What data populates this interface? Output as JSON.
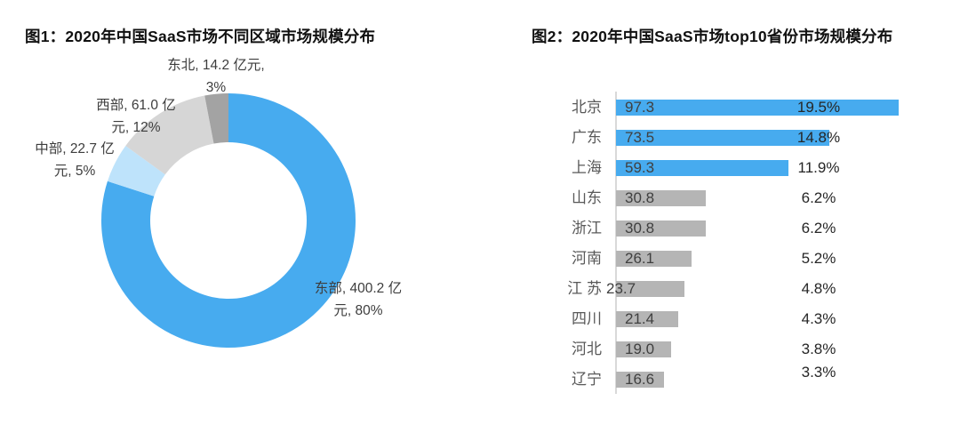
{
  "figure1": {
    "title": "图1：2020年中国SaaS市场不同区域市场规模分布"
  },
  "figure2": {
    "title": "图2：2020年中国SaaS市场top10省份市场规模分布"
  },
  "colors": {
    "accent_blue": "#47ABEF",
    "pale_blue": "#BEE3FB",
    "light_gray": "#D6D6D6",
    "medium_gray": "#A3A3A3",
    "bar_gray": "#B5B5B5",
    "axis_gray": "#D9D9D9"
  },
  "chart_data": [
    {
      "type": "pie",
      "subtype": "donut",
      "title": "图1：2020年中国SaaS市场不同区域市场规模分布",
      "unit": "亿元",
      "start_angle_deg": 0,
      "direction": "clockwise",
      "legend_position": "none",
      "slices": [
        {
          "name": "东部",
          "value": 400.2,
          "percent": 80,
          "color": "#47ABEF",
          "label_lines": [
            "东部, 400.2 亿",
            "元, 80%"
          ]
        },
        {
          "name": "中部",
          "value": 22.7,
          "percent": 5,
          "color": "#BEE3FB",
          "label_lines": [
            "中部, 22.7 亿",
            "元, 5%"
          ]
        },
        {
          "name": "西部",
          "value": 61.0,
          "percent": 12,
          "color": "#D6D6D6",
          "label_lines": [
            "西部, 61.0 亿",
            "元, 12%"
          ]
        },
        {
          "name": "东北",
          "value": 14.2,
          "percent": 3,
          "color": "#A3A3A3",
          "label_lines": [
            "东北, 14.2 亿元,",
            "3%"
          ]
        }
      ]
    },
    {
      "type": "bar",
      "orientation": "horizontal",
      "title": "图2：2020年中国SaaS市场top10省份市场规模分布",
      "xlabel": "",
      "ylabel": "",
      "grid": false,
      "value_scale_max": 97.3,
      "rows": [
        {
          "province": "北京",
          "value": 97.3,
          "value_label": "97.3",
          "percent": "19.5%",
          "highlight": true
        },
        {
          "province": "广东",
          "value": 73.5,
          "value_label": "73.5",
          "percent": "14.8%",
          "highlight": true
        },
        {
          "province": "上海",
          "value": 59.3,
          "value_label": "59.3",
          "percent": "11.9%",
          "highlight": true
        },
        {
          "province": "山东",
          "value": 30.8,
          "value_label": "30.8",
          "percent": "6.2%",
          "highlight": false
        },
        {
          "province": "浙江",
          "value": 30.8,
          "value_label": "30.8",
          "percent": "6.2%",
          "highlight": false
        },
        {
          "province": "河南",
          "value": 26.1,
          "value_label": "26.1",
          "percent": "5.2%",
          "highlight": false
        },
        {
          "province": "江 苏",
          "value": 23.7,
          "value_label": "23.7",
          "percent": "4.8%",
          "highlight": false,
          "value_label_overlaps_axis": true
        },
        {
          "province": "四川",
          "value": 21.4,
          "value_label": "21.4",
          "percent": "4.3%",
          "highlight": false
        },
        {
          "province": "河北",
          "value": 19.0,
          "value_label": "19.0",
          "percent": "3.8%",
          "highlight": false
        },
        {
          "province": "辽宁",
          "value": 16.6,
          "value_label": "16.6",
          "percent": "3.3%",
          "highlight": false,
          "percent_raised": true
        }
      ]
    }
  ]
}
